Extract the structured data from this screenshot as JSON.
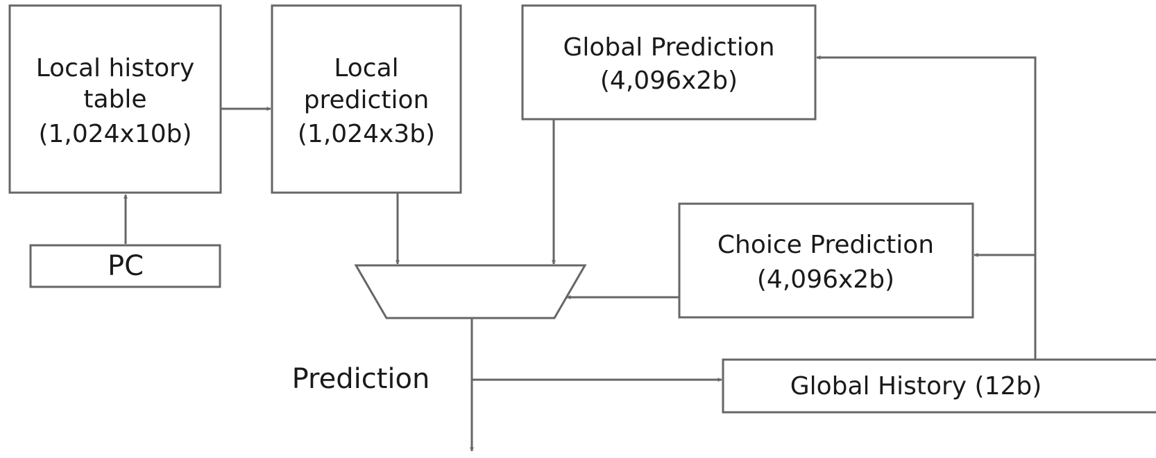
{
  "blocks": {
    "local_history_table": {
      "lines": [
        "Local history",
        "table",
        "(1,024x10b)"
      ]
    },
    "local_prediction": {
      "lines": [
        "Local",
        "prediction",
        "(1,024x3b)"
      ]
    },
    "global_prediction": {
      "lines": [
        "Global Prediction",
        "(4,096x2b)"
      ]
    },
    "choice_prediction": {
      "lines": [
        "Choice Prediction",
        "(4,096x2b)"
      ]
    },
    "pc": {
      "label": "PC"
    },
    "global_history": {
      "label": "Global History (12b)"
    }
  },
  "labels": {
    "prediction_output": "Prediction"
  },
  "colors": {
    "stroke": "#666666",
    "text": "#1a1a1a",
    "background": "#ffffff"
  }
}
